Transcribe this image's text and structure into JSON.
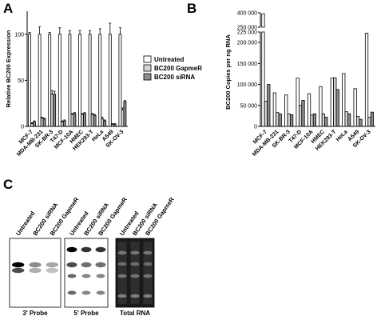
{
  "panels": {
    "a": "A",
    "b": "B",
    "c": "C"
  },
  "chart_data": [
    {
      "type": "bar",
      "panel": "A",
      "title": "",
      "xlabel": "",
      "ylabel": "Relative BC200 Expression",
      "ylim": [
        0,
        125
      ],
      "yticks": [
        0,
        50,
        100
      ],
      "categories": [
        "MCF-7",
        "MDA-MB-231",
        "SK-BR-3",
        "T47-D",
        "MCF-10A",
        "HMEC",
        "HEK293-T",
        "HeLa",
        "A549",
        "SK-OV-3"
      ],
      "series": [
        {
          "name": "Untreated",
          "color": "#ffffff",
          "values": [
            100,
            100,
            100,
            100,
            100,
            100,
            100,
            100,
            100,
            100
          ],
          "errors": [
            2,
            8,
            2,
            7,
            4,
            4,
            4,
            6,
            12,
            7
          ]
        },
        {
          "name": "BC200 GapmeR",
          "color": "#d4d4d4",
          "values": [
            3,
            9,
            35,
            5,
            13,
            13,
            13,
            8,
            2,
            18
          ],
          "errors": [
            1,
            1,
            4,
            1,
            1,
            1,
            1,
            2,
            1,
            2
          ]
        },
        {
          "name": "BC200 siRNA",
          "color": "#8c8c8c",
          "values": [
            5,
            8,
            35,
            6,
            14,
            14,
            12,
            6,
            2,
            27
          ],
          "errors": [
            1,
            1,
            3,
            1,
            1,
            1,
            1,
            1,
            1,
            1
          ]
        }
      ],
      "legend": "right",
      "grid": false
    },
    {
      "type": "bar",
      "panel": "B",
      "title": "",
      "xlabel": "",
      "ylabel": "BC200 Copies per ng RNA",
      "yticks": [
        "0",
        "50 000",
        "100 000",
        "150 000",
        "200 000",
        "225 000",
        "250 000",
        "400 000"
      ],
      "axis_break": "between 225 000 and 250 000",
      "categories": [
        "MCF-7",
        "MDA-MB-231",
        "SK-BR-3",
        "T47-D",
        "MCF-10A",
        "HMEC",
        "HEK293-T",
        "HeLa",
        "A549",
        "SK-OV-3"
      ],
      "series": [
        {
          "name": "Untreated",
          "color": "#ffffff",
          "values": [
            390000,
            80000,
            75000,
            115000,
            78000,
            95000,
            115000,
            126000,
            90000,
            222000
          ]
        },
        {
          "name": "BC200 GapmeR",
          "color": "#d4d4d4",
          "values": [
            60000,
            33000,
            30000,
            50000,
            27000,
            30000,
            116000,
            35000,
            24000,
            22000
          ]
        },
        {
          "name": "BC200 siRNA",
          "color": "#8c8c8c",
          "values": [
            100000,
            30000,
            28000,
            62000,
            30000,
            22000,
            88000,
            30000,
            17000,
            34000
          ]
        }
      ],
      "grid": false
    }
  ],
  "blots": {
    "lanes": [
      "Untreated",
      "BC200 siRNA",
      "BC200 GapmeR"
    ],
    "panels": [
      {
        "label": "3' Probe",
        "band_intensity": [
          1.0,
          0.45,
          0.35
        ]
      },
      {
        "label": "5' Probe",
        "band_intensity": [
          1.0,
          0.8,
          0.8
        ]
      },
      {
        "label": "Total RNA",
        "band_intensity": [
          1.0,
          1.0,
          1.0
        ]
      }
    ]
  }
}
